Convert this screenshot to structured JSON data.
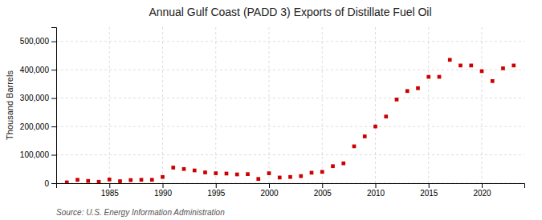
{
  "chart_data": {
    "type": "scatter",
    "title": "Annual Gulf Coast (PADD 3) Exports of Distillate Fuel Oil",
    "ylabel": "Thousand Barrels",
    "annotations": [
      "Source: U.S. Energy Information Administration"
    ],
    "x": [
      1981,
      1982,
      1983,
      1984,
      1985,
      1986,
      1987,
      1988,
      1989,
      1990,
      1991,
      1992,
      1993,
      1994,
      1995,
      1996,
      1997,
      1998,
      1999,
      2000,
      2001,
      2002,
      2003,
      2004,
      2005,
      2006,
      2007,
      2008,
      2009,
      2010,
      2011,
      2012,
      2013,
      2014,
      2015,
      2016,
      2017,
      2018,
      2019,
      2020,
      2021,
      2022,
      2023
    ],
    "values": [
      3000,
      12000,
      8000,
      5000,
      13000,
      7000,
      11000,
      12000,
      12000,
      22000,
      55000,
      50000,
      45000,
      38000,
      35000,
      34000,
      31000,
      32000,
      15000,
      35000,
      20000,
      22000,
      25000,
      37000,
      40000,
      60000,
      70000,
      130000,
      165000,
      200000,
      235000,
      295000,
      325000,
      335000,
      375000,
      375000,
      435000,
      415000,
      415000,
      395000,
      360000,
      405000,
      415000
    ],
    "color": "#cc0000",
    "marker": "square",
    "xlim": [
      1980,
      2024
    ],
    "xticks": [
      1985,
      1990,
      1995,
      2000,
      2005,
      2010,
      2015,
      2020
    ],
    "ylim": [
      0,
      550000
    ],
    "yticks": [
      0,
      {
        "value": 100000,
        "label": "100,000"
      },
      {
        "value": 200000,
        "label": "200,000"
      },
      {
        "value": 300000,
        "label": "300,000"
      },
      {
        "value": 400000,
        "label": "400,000"
      },
      {
        "value": 500000,
        "label": "500,000"
      }
    ],
    "grid": true
  }
}
